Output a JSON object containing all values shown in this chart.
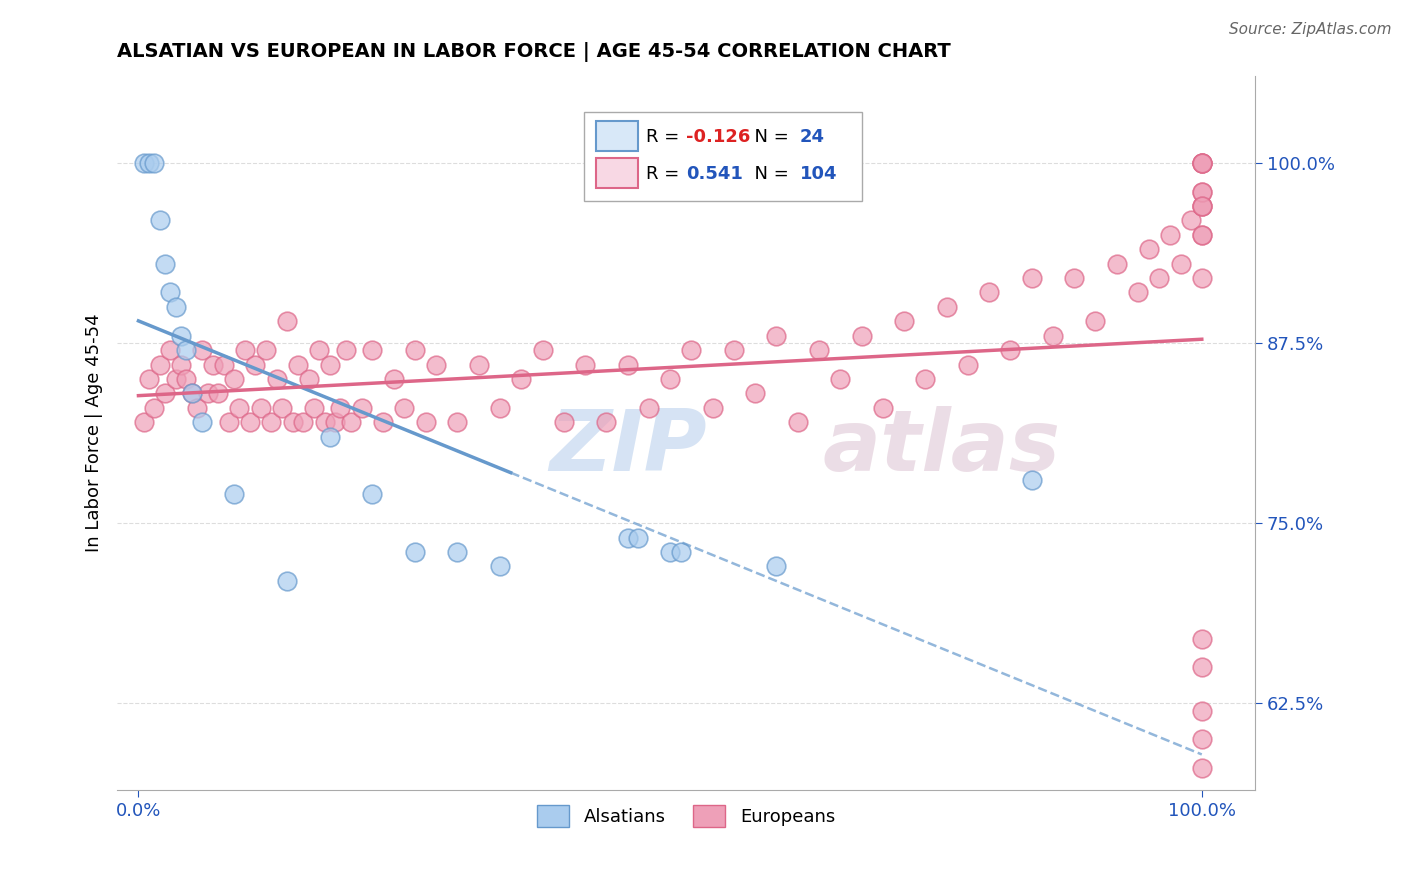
{
  "title": "ALSATIAN VS EUROPEAN IN LABOR FORCE | AGE 45-54 CORRELATION CHART",
  "source_text": "Source: ZipAtlas.com",
  "ylabel": "In Labor Force | Age 45-54",
  "right_yticks": [
    0.625,
    0.75,
    0.875,
    1.0
  ],
  "right_yticklabels": [
    "62.5%",
    "75.0%",
    "87.5%",
    "100.0%"
  ],
  "xlim": [
    -0.02,
    1.05
  ],
  "ylim": [
    0.565,
    1.06
  ],
  "alsatian_color": "#6699cc",
  "alsatian_color_fill": "#aaccee",
  "european_color": "#dd6688",
  "european_color_fill": "#eea0b8",
  "alsatian_R": -0.126,
  "alsatian_N": 24,
  "european_R": 0.541,
  "european_N": 104,
  "legend_box_color": "#d8e8f8",
  "legend_box_color2": "#f8d8e4",
  "watermark": "ZIPAtlas",
  "watermark_color1": "#8ab0e0",
  "watermark_color2": "#c8a0b8",
  "grid_color": "#dddddd",
  "alsatian_x": [
    0.005,
    0.01,
    0.015,
    0.02,
    0.025,
    0.03,
    0.035,
    0.04,
    0.045,
    0.05,
    0.06,
    0.09,
    0.14,
    0.18,
    0.22,
    0.26,
    0.3,
    0.34,
    0.46,
    0.47,
    0.5,
    0.51,
    0.6,
    0.84
  ],
  "alsatian_y": [
    1.0,
    1.0,
    1.0,
    0.96,
    0.93,
    0.91,
    0.9,
    0.88,
    0.87,
    0.84,
    0.82,
    0.77,
    0.71,
    0.81,
    0.77,
    0.73,
    0.73,
    0.72,
    0.74,
    0.74,
    0.73,
    0.73,
    0.72,
    0.78
  ],
  "european_x": [
    0.005,
    0.01,
    0.015,
    0.02,
    0.025,
    0.03,
    0.035,
    0.04,
    0.045,
    0.05,
    0.055,
    0.06,
    0.065,
    0.07,
    0.075,
    0.08,
    0.085,
    0.09,
    0.095,
    0.1,
    0.105,
    0.11,
    0.115,
    0.12,
    0.125,
    0.13,
    0.135,
    0.14,
    0.145,
    0.15,
    0.155,
    0.16,
    0.165,
    0.17,
    0.175,
    0.18,
    0.185,
    0.19,
    0.195,
    0.2,
    0.21,
    0.22,
    0.23,
    0.24,
    0.25,
    0.26,
    0.27,
    0.28,
    0.3,
    0.32,
    0.34,
    0.36,
    0.38,
    0.4,
    0.42,
    0.44,
    0.46,
    0.48,
    0.5,
    0.52,
    0.54,
    0.56,
    0.58,
    0.6,
    0.62,
    0.64,
    0.66,
    0.68,
    0.7,
    0.72,
    0.74,
    0.76,
    0.78,
    0.8,
    0.82,
    0.84,
    0.86,
    0.88,
    0.9,
    0.92,
    0.94,
    0.95,
    0.96,
    0.97,
    0.98,
    0.99,
    1.0,
    1.0,
    1.0,
    1.0,
    1.0,
    1.0,
    1.0,
    1.0,
    1.0,
    1.0,
    1.0,
    1.0,
    1.0,
    1.0,
    1.0,
    1.0,
    1.0,
    1.0
  ],
  "european_y": [
    0.82,
    0.85,
    0.83,
    0.86,
    0.84,
    0.87,
    0.85,
    0.86,
    0.85,
    0.84,
    0.83,
    0.87,
    0.84,
    0.86,
    0.84,
    0.86,
    0.82,
    0.85,
    0.83,
    0.87,
    0.82,
    0.86,
    0.83,
    0.87,
    0.82,
    0.85,
    0.83,
    0.89,
    0.82,
    0.86,
    0.82,
    0.85,
    0.83,
    0.87,
    0.82,
    0.86,
    0.82,
    0.83,
    0.87,
    0.82,
    0.83,
    0.87,
    0.82,
    0.85,
    0.83,
    0.87,
    0.82,
    0.86,
    0.82,
    0.86,
    0.83,
    0.85,
    0.87,
    0.82,
    0.86,
    0.82,
    0.86,
    0.83,
    0.85,
    0.87,
    0.83,
    0.87,
    0.84,
    0.88,
    0.82,
    0.87,
    0.85,
    0.88,
    0.83,
    0.89,
    0.85,
    0.9,
    0.86,
    0.91,
    0.87,
    0.92,
    0.88,
    0.92,
    0.89,
    0.93,
    0.91,
    0.94,
    0.92,
    0.95,
    0.93,
    0.96,
    0.97,
    0.98,
    0.92,
    0.95,
    0.97,
    0.98,
    1.0,
    1.0,
    1.0,
    1.0,
    0.97,
    0.95,
    0.67,
    0.6,
    0.65,
    0.55,
    0.58,
    0.62
  ]
}
